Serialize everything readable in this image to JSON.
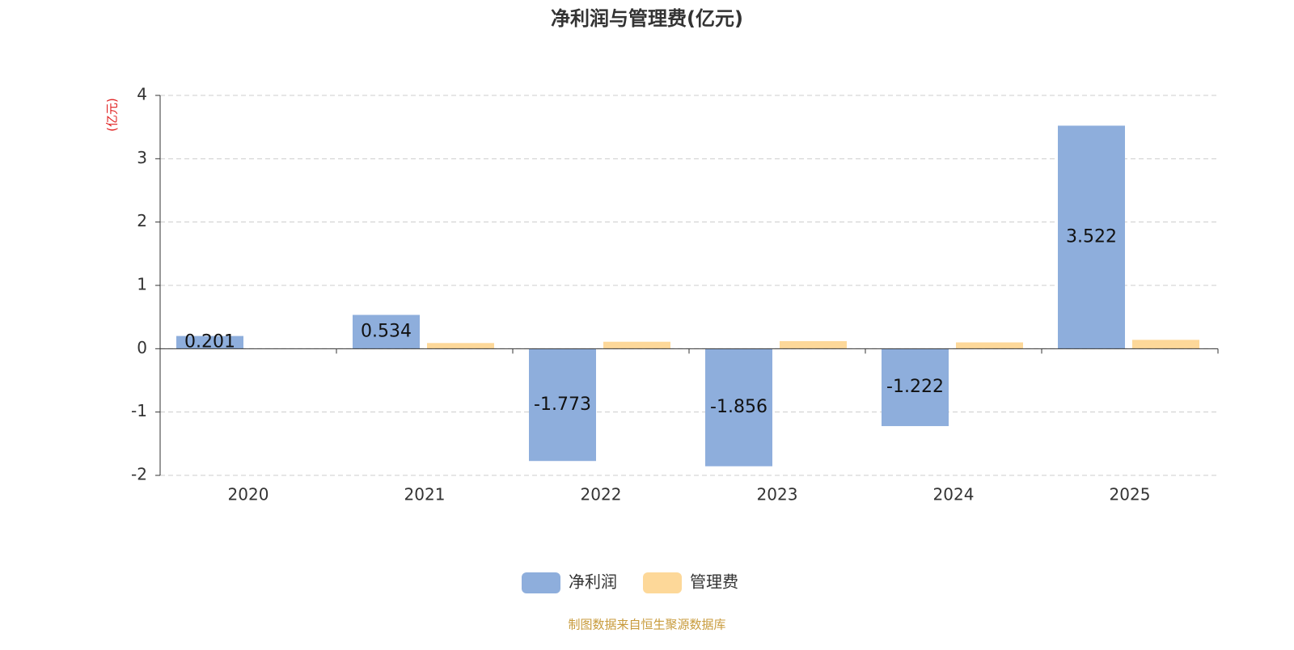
{
  "chart_data": {
    "type": "bar",
    "title": "净利润与管理费(亿元)",
    "y_axis_label": "(亿元)",
    "categories": [
      "2020",
      "2021",
      "2022",
      "2023",
      "2024",
      "2025"
    ],
    "series": [
      {
        "name": "净利润",
        "color": "#8eaedc",
        "values": [
          0.201,
          0.534,
          -1.773,
          -1.856,
          -1.222,
          3.522
        ]
      },
      {
        "name": "管理费",
        "color": "#fdd899",
        "values": [
          null,
          0.09,
          0.11,
          0.12,
          0.1,
          0.14
        ]
      }
    ],
    "ylim": [
      -2,
      4
    ],
    "yticks": [
      -2,
      -1,
      0,
      1,
      2,
      3,
      4
    ],
    "grid": true,
    "source": "制图数据来自恒生聚源数据库"
  }
}
